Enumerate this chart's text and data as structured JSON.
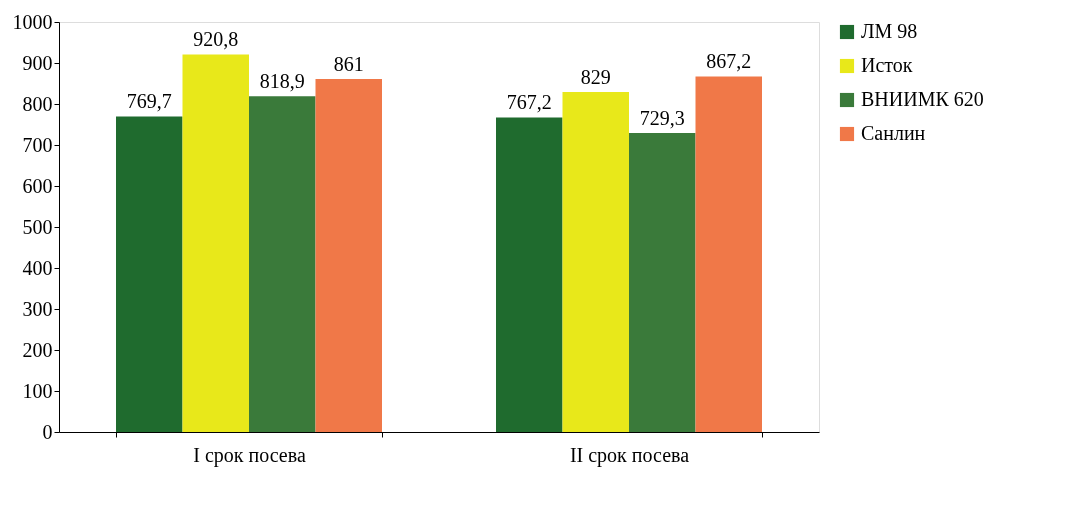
{
  "chart_data": {
    "type": "bar",
    "categories": [
      "I срок посева",
      "II срок посева"
    ],
    "series": [
      {
        "name": "ЛМ 98",
        "color": "#1f6b2e",
        "values": [
          769.7,
          767.2
        ],
        "value_labels": [
          "769,7",
          "767,2"
        ]
      },
      {
        "name": "Исток",
        "color": "#e8e81a",
        "values": [
          920.8,
          829
        ],
        "value_labels": [
          "920,8",
          "829"
        ]
      },
      {
        "name": "ВНИИМК 620",
        "color": "#3a7a3a",
        "values": [
          818.9,
          729.3
        ],
        "value_labels": [
          "818,9",
          "729,3"
        ]
      },
      {
        "name": "Санлин",
        "color": "#f07848",
        "values": [
          861,
          867.2
        ],
        "value_labels": [
          "861",
          "867,2"
        ]
      }
    ],
    "ylim": [
      0,
      1000
    ],
    "yticks": [
      0,
      100,
      200,
      300,
      400,
      500,
      600,
      700,
      800,
      900,
      1000
    ],
    "grid": false,
    "legend": "right"
  }
}
